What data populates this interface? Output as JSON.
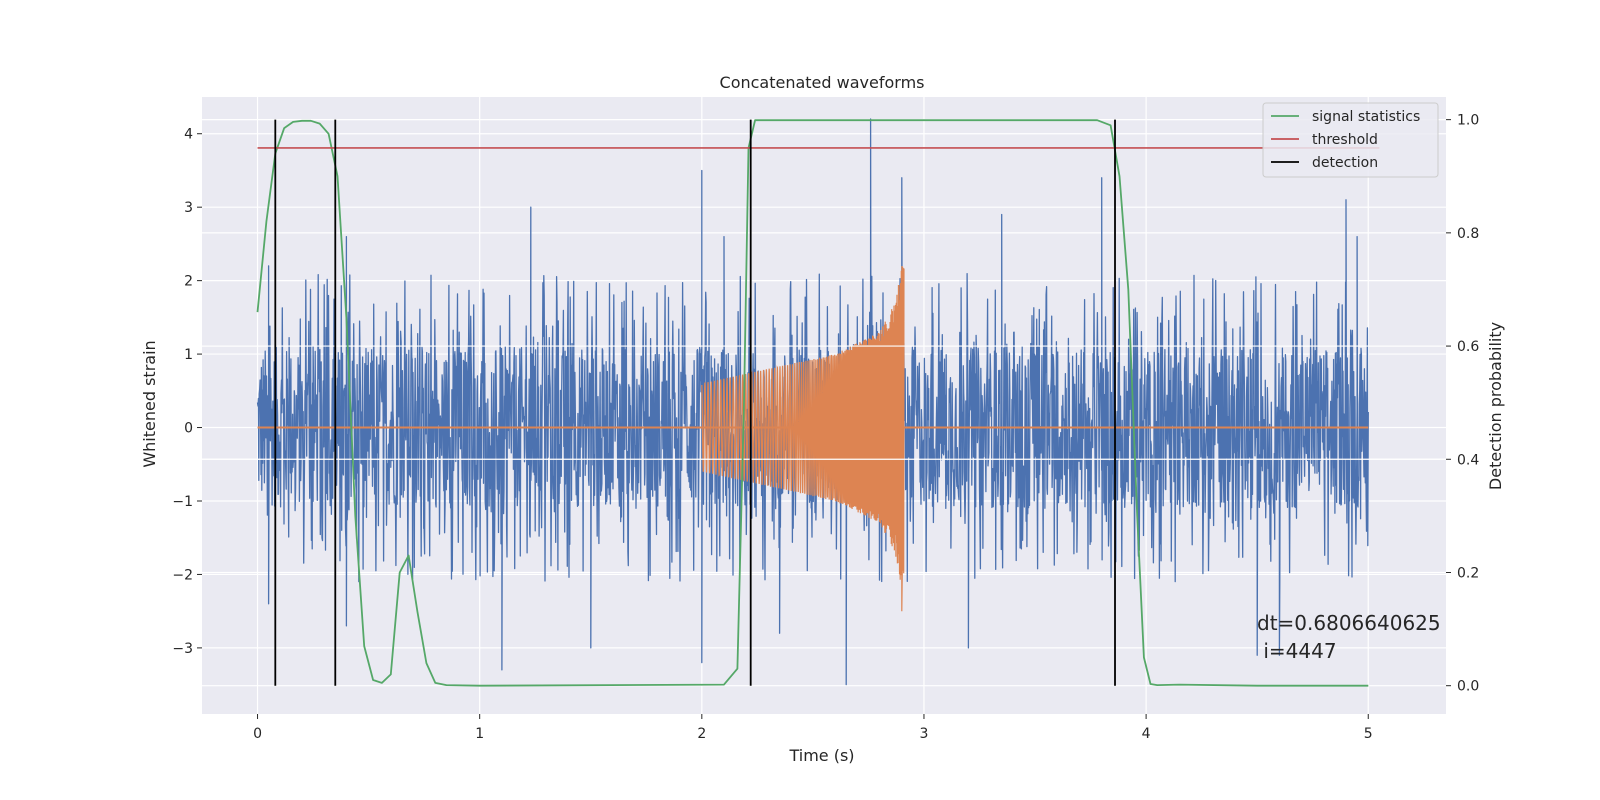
{
  "chart_data": {
    "type": "line",
    "title": "Concatenated waveforms",
    "xlabel": "Time (s)",
    "ylabel": "Whitened strain",
    "y2label": "Detection probability",
    "xlim": [
      -0.25,
      5.35
    ],
    "ylim": [
      -3.9,
      4.5
    ],
    "y2lim": [
      -0.05,
      1.04
    ],
    "xticks": [
      0,
      1,
      2,
      3,
      4,
      5
    ],
    "yticks": [
      -3,
      -2,
      -1,
      0,
      1,
      2,
      3,
      4
    ],
    "y2ticks": [
      0.0,
      0.2,
      0.4,
      0.6,
      0.8,
      1.0
    ],
    "xtick_labels": [
      "0",
      "1",
      "2",
      "3",
      "4",
      "5"
    ],
    "ytick_labels": [
      "−3",
      "−2",
      "−1",
      "0",
      "1",
      "2",
      "3",
      "4"
    ],
    "y2tick_labels": [
      "0.0",
      "0.2",
      "0.4",
      "0.6",
      "0.8",
      "1.0"
    ],
    "grid": true,
    "legend_position": "top-right",
    "colors": {
      "strain": "#4c72b0",
      "template": "#dd8452",
      "signal_statistics": "#55a868",
      "threshold": "#c44e52",
      "detection": "#000000",
      "background": "#eaeaf2",
      "grid": "#ffffff"
    },
    "series": [
      {
        "name": "signal statistics",
        "axis": "right",
        "x": [
          0.0,
          0.04,
          0.08,
          0.12,
          0.16,
          0.2,
          0.24,
          0.28,
          0.32,
          0.36,
          0.4,
          0.44,
          0.48,
          0.52,
          0.56,
          0.6,
          0.64,
          0.68,
          0.72,
          0.76,
          0.8,
          0.85,
          1.0,
          2.1,
          2.16,
          2.19,
          2.21,
          2.24,
          2.28,
          3.78,
          3.84,
          3.88,
          3.92,
          3.96,
          3.99,
          4.02,
          4.05,
          4.15,
          4.5,
          5.0
        ],
        "values": [
          0.66,
          0.82,
          0.94,
          0.985,
          0.996,
          0.998,
          0.998,
          0.993,
          0.975,
          0.9,
          0.65,
          0.3,
          0.07,
          0.01,
          0.005,
          0.02,
          0.2,
          0.23,
          0.13,
          0.04,
          0.005,
          0.001,
          0.0,
          0.002,
          0.03,
          0.5,
          0.95,
          0.999,
          0.999,
          0.999,
          0.99,
          0.9,
          0.7,
          0.3,
          0.05,
          0.003,
          0.001,
          0.002,
          0.0,
          0.0
        ]
      },
      {
        "name": "threshold",
        "axis": "right",
        "x": [
          0.0,
          5.05
        ],
        "values": [
          0.95,
          0.95
        ]
      },
      {
        "name": "detection",
        "axis": "right",
        "vlines_x": [
          0.08,
          0.35,
          2.22,
          3.86
        ],
        "vlines_range": [
          0.0,
          1.0
        ]
      },
      {
        "name": "",
        "axis": "left",
        "description_type": "noise",
        "x_range": [
          0.0,
          5.0
        ],
        "core_amplitude": 1.1,
        "peaks": [
          {
            "x": 0.05,
            "y": 2.2
          },
          {
            "x": 0.25,
            "y": 1.1
          },
          {
            "x": 0.4,
            "y": 2.6
          },
          {
            "x": 1.23,
            "y": 3.0
          },
          {
            "x": 2.0,
            "y": 3.5
          },
          {
            "x": 2.1,
            "y": 2.6
          },
          {
            "x": 2.76,
            "y": 4.2
          },
          {
            "x": 2.9,
            "y": 3.4
          },
          {
            "x": 3.35,
            "y": 2.9
          },
          {
            "x": 3.8,
            "y": 3.4
          },
          {
            "x": 4.9,
            "y": 3.1
          },
          {
            "x": 4.95,
            "y": 2.6
          }
        ],
        "troughs": [
          {
            "x": 0.05,
            "y": -2.4
          },
          {
            "x": 0.4,
            "y": -2.7
          },
          {
            "x": 1.1,
            "y": -3.3
          },
          {
            "x": 1.5,
            "y": -3.0
          },
          {
            "x": 2.0,
            "y": -3.2
          },
          {
            "x": 2.35,
            "y": -2.8
          },
          {
            "x": 2.65,
            "y": -3.5
          },
          {
            "x": 3.2,
            "y": -3.0
          },
          {
            "x": 4.5,
            "y": -3.1
          },
          {
            "x": 4.6,
            "y": -3.1
          }
        ]
      },
      {
        "name": "",
        "axis": "left",
        "description_type": "chirp",
        "x_range": [
          2.0,
          2.91
        ],
        "envelope": [
          {
            "x": 2.0,
            "amp": 0.6
          },
          {
            "x": 2.3,
            "amp": 0.8
          },
          {
            "x": 2.6,
            "amp": 1.0
          },
          {
            "x": 2.8,
            "amp": 1.3
          },
          {
            "x": 2.87,
            "amp": 1.7
          },
          {
            "x": 2.9,
            "amp": 2.2
          }
        ],
        "peak": {
          "x": 2.9,
          "y": 1.9
        },
        "trough": {
          "x": 2.9,
          "y": -2.5
        }
      }
    ],
    "annotations": [
      "dt=0.6806640625",
      " i=4447"
    ]
  }
}
